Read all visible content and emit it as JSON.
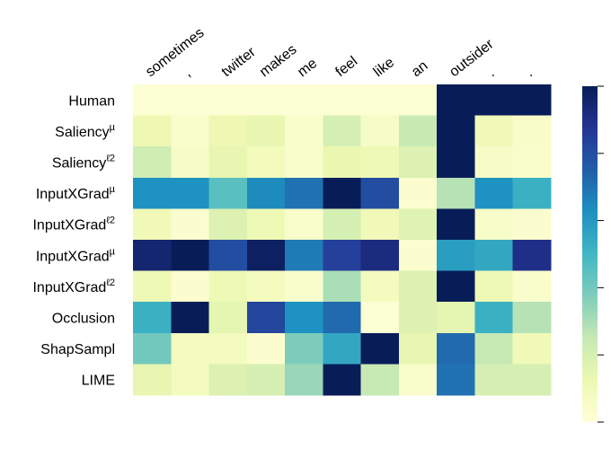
{
  "chart_data": {
    "type": "heatmap",
    "colormap": "YlGnBu",
    "columns": [
      "sometimes",
      ",",
      "twitter",
      "makes",
      "me",
      "feel",
      "like",
      "an",
      "outsider",
      ".",
      "."
    ],
    "rows": [
      {
        "label": "Human",
        "sup": ""
      },
      {
        "label": "Saliency",
        "sup": "µ"
      },
      {
        "label": "Saliency",
        "sup": "ℓ2"
      },
      {
        "label": "InputXGrad",
        "sup": "µ"
      },
      {
        "label": "InputXGrad",
        "sup": "ℓ2"
      },
      {
        "label": "InputXGrad",
        "sup": "µ"
      },
      {
        "label": "InputXGrad",
        "sup": "ℓ2"
      },
      {
        "label": "Occlusion",
        "sup": ""
      },
      {
        "label": "ShapSampl",
        "sup": ""
      },
      {
        "label": "LIME",
        "sup": ""
      }
    ],
    "values": [
      [
        0.02,
        0.02,
        0.02,
        0.02,
        0.02,
        0.02,
        0.02,
        0.02,
        1.0,
        1.0,
        1.0
      ],
      [
        0.12,
        0.04,
        0.12,
        0.14,
        0.04,
        0.2,
        0.06,
        0.24,
        1.0,
        0.1,
        0.05
      ],
      [
        0.22,
        0.06,
        0.14,
        0.09,
        0.04,
        0.13,
        0.11,
        0.18,
        1.0,
        0.06,
        0.04
      ],
      [
        0.62,
        0.62,
        0.45,
        0.64,
        0.7,
        1.0,
        0.8,
        0.03,
        0.28,
        0.62,
        0.52
      ],
      [
        0.1,
        0.03,
        0.18,
        0.11,
        0.04,
        0.2,
        0.1,
        0.17,
        1.0,
        0.05,
        0.03
      ],
      [
        0.95,
        1.0,
        0.8,
        0.98,
        0.68,
        0.84,
        0.92,
        0.03,
        0.58,
        0.55,
        0.9
      ],
      [
        0.11,
        0.03,
        0.11,
        0.08,
        0.04,
        0.3,
        0.08,
        0.18,
        1.0,
        0.11,
        0.04
      ],
      [
        0.52,
        1.0,
        0.15,
        0.82,
        0.62,
        0.72,
        0.02,
        0.18,
        0.15,
        0.52,
        0.28
      ],
      [
        0.4,
        0.08,
        0.08,
        0.03,
        0.38,
        0.55,
        1.0,
        0.14,
        0.72,
        0.25,
        0.1
      ],
      [
        0.14,
        0.08,
        0.18,
        0.2,
        0.33,
        1.0,
        0.25,
        0.04,
        0.7,
        0.2,
        0.2
      ]
    ],
    "colorbar": {
      "range": [
        0,
        1
      ],
      "tick_count": 6,
      "show_tick_labels": false
    }
  }
}
